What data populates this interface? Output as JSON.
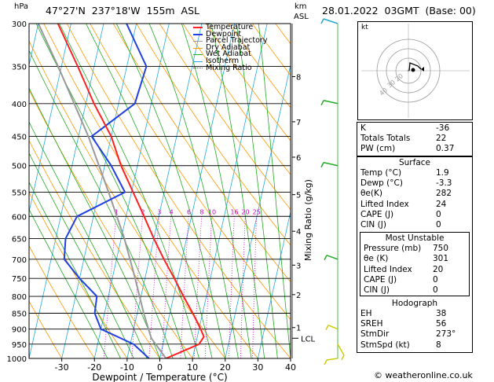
{
  "header": {
    "pressure_unit": "hPa",
    "location": "47°27'N  237°18'W  155m  ASL",
    "km_label": "km",
    "asl_label": "ASL",
    "datetime": "28.01.2022  03GMT  (Base: 00)"
  },
  "legend": [
    {
      "name": "Temperature",
      "color": "#ff2020"
    },
    {
      "name": "Dewpoint",
      "color": "#2040e0"
    },
    {
      "name": "Parcel Trajectory",
      "color": "#999999"
    },
    {
      "name": "Dry Adiabat",
      "color": "#ff9900"
    },
    {
      "name": "Wet Adiabat",
      "color": "#22aa22"
    },
    {
      "name": "Isotherm",
      "color": "#22aadd"
    },
    {
      "name": "Mixing Ratio",
      "color": "#cc00cc"
    }
  ],
  "chart_data": {
    "type": "skewt",
    "xlabel": "Dewpoint / Temperature (°C)",
    "ylabel": "Mixing Ratio (g/kg)",
    "pressure_ticks": [
      300,
      350,
      400,
      450,
      500,
      550,
      600,
      650,
      700,
      750,
      800,
      850,
      900,
      950,
      1000
    ],
    "temp_ticks": [
      -30,
      -20,
      -10,
      0,
      10,
      20,
      30,
      40
    ],
    "xlim": [
      -40,
      40
    ],
    "plim": [
      300,
      1000
    ],
    "km_ticks": [
      {
        "km": 8,
        "p": 363
      },
      {
        "km": 7,
        "p": 427
      },
      {
        "km": 6,
        "p": 485
      },
      {
        "km": 5,
        "p": 555
      },
      {
        "km": 4,
        "p": 633
      },
      {
        "km": 3,
        "p": 715
      },
      {
        "km": 2,
        "p": 795
      },
      {
        "km": 1,
        "p": 895
      }
    ],
    "lcl_label": "LCL",
    "lcl_p": 930,
    "mixing_ratio_labels": [
      "1",
      "2",
      "3",
      "4",
      "6",
      "8",
      "10",
      "16",
      "20",
      "25"
    ],
    "mixing_ratio_values": [
      1,
      2,
      3,
      4,
      6,
      8,
      10,
      16,
      20,
      25
    ],
    "mixing_ratio_label_p": 590,
    "temperature": [
      {
        "p": 1000,
        "t": 1.9
      },
      {
        "p": 950,
        "t": 11
      },
      {
        "p": 925,
        "t": 12
      },
      {
        "p": 900,
        "t": 10.5
      },
      {
        "p": 850,
        "t": 7
      },
      {
        "p": 800,
        "t": 3
      },
      {
        "p": 750,
        "t": -1
      },
      {
        "p": 700,
        "t": -5.5
      },
      {
        "p": 650,
        "t": -10
      },
      {
        "p": 600,
        "t": -14.5
      },
      {
        "p": 550,
        "t": -19.5
      },
      {
        "p": 500,
        "t": -25
      },
      {
        "p": 450,
        "t": -30
      },
      {
        "p": 400,
        "t": -37.5
      },
      {
        "p": 350,
        "t": -45
      },
      {
        "p": 300,
        "t": -54
      }
    ],
    "dewpoint": [
      {
        "p": 1000,
        "t": -3.3
      },
      {
        "p": 950,
        "t": -9
      },
      {
        "p": 900,
        "t": -20
      },
      {
        "p": 850,
        "t": -23
      },
      {
        "p": 800,
        "t": -23.5
      },
      {
        "p": 750,
        "t": -30
      },
      {
        "p": 700,
        "t": -36
      },
      {
        "p": 650,
        "t": -37
      },
      {
        "p": 600,
        "t": -35
      },
      {
        "p": 550,
        "t": -22
      },
      {
        "p": 500,
        "t": -28
      },
      {
        "p": 450,
        "t": -36
      },
      {
        "p": 400,
        "t": -25
      },
      {
        "p": 350,
        "t": -24
      },
      {
        "p": 300,
        "t": -33
      }
    ],
    "parcel": [
      {
        "p": 1000,
        "t": 1.9
      },
      {
        "p": 930,
        "t": -4
      },
      {
        "p": 850,
        "t": -8
      },
      {
        "p": 750,
        "t": -13
      },
      {
        "p": 650,
        "t": -19
      },
      {
        "p": 550,
        "t": -27
      },
      {
        "p": 450,
        "t": -37
      },
      {
        "p": 350,
        "t": -51
      },
      {
        "p": 300,
        "t": -60
      }
    ]
  },
  "hodograph": {
    "label": "kt",
    "ring_labels": [
      "40",
      "30",
      "20"
    ]
  },
  "indices": [
    {
      "label": "K",
      "value": "-36"
    },
    {
      "label": "Totals Totals",
      "value": "22"
    },
    {
      "label": "PW (cm)",
      "value": "0.37"
    }
  ],
  "surface": {
    "title": "Surface",
    "rows": [
      {
        "label": "Temp (°C)",
        "value": "1.9"
      },
      {
        "label": "Dewp (°C)",
        "value": "-3.3"
      },
      {
        "label": "θe(K)",
        "value": "282"
      },
      {
        "label": "Lifted Index",
        "value": "24"
      },
      {
        "label": "CAPE (J)",
        "value": "0"
      },
      {
        "label": "CIN (J)",
        "value": "0"
      }
    ]
  },
  "most_unstable": {
    "title": "Most Unstable",
    "rows": [
      {
        "label": "Pressure (mb)",
        "value": "750"
      },
      {
        "label": "θe (K)",
        "value": "301"
      },
      {
        "label": "Lifted Index",
        "value": "20"
      },
      {
        "label": "CAPE (J)",
        "value": "0"
      },
      {
        "label": "CIN (J)",
        "value": "0"
      }
    ]
  },
  "hodograph_table": {
    "title": "Hodograph",
    "rows": [
      {
        "label": "EH",
        "value": "38"
      },
      {
        "label": "SREH",
        "value": "56"
      },
      {
        "label": "StmDir",
        "value": "273°"
      },
      {
        "label": "StmSpd (kt)",
        "value": "8"
      }
    ]
  },
  "footer": {
    "credit": "© weatheronline.co.uk"
  }
}
